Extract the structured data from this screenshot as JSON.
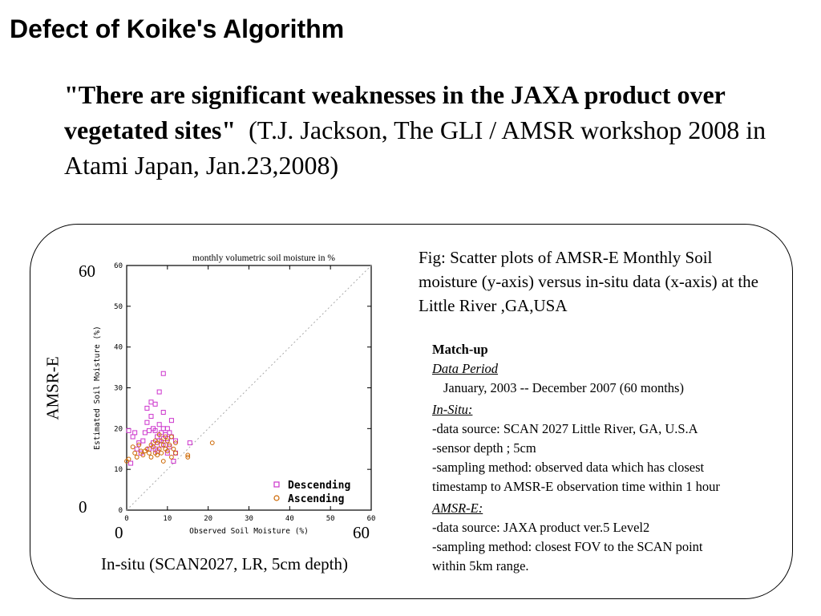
{
  "slide": {
    "title": "Defect of Koike's Algorithm",
    "quote_bold": "\"There are significant weaknesses in the JAXA product over vegetated sites\"",
    "quote_rest": "(T.J. Jackson, The GLI / AMSR workshop 2008 in Atami Japan, Jan.23,2008)"
  },
  "figure": {
    "outer_y_label": "AMSR-E",
    "outer_x_label": "In-situ (SCAN2027, LR, 5cm depth)",
    "outer_y_top": "60",
    "outer_y_bottom": "0",
    "outer_x_left": "0",
    "outer_x_right": "60",
    "annotation": "monthly volumetric soil moisture in %"
  },
  "caption": "Fig: Scatter plots of AMSR-E Monthly Soil moisture (y-axis) versus in-situ data (x-axis) at the Little River ,GA,USA",
  "info": {
    "heading": "Match-up",
    "period_label": "Data Period",
    "period_value": "January, 2003  -- December 2007 (60 months)",
    "insitu_label": "In-Situ:",
    "insitu_lines": [
      "-data source: SCAN 2027 Little River, GA, U.S.A",
      "-sensor depth ; 5cm",
      "-sampling method:  observed data which has closest",
      "timestamp to AMSR-E observation time within 1 hour"
    ],
    "amsr_label": "AMSR-E:",
    "amsr_lines": [
      "-data source: JAXA product ver.5 Level2",
      "-sampling method: closest FOV to the SCAN point",
      "within 5km range."
    ]
  },
  "chart_data": {
    "type": "scatter",
    "title": "",
    "xlabel": "Observed Soil Moisture (%)",
    "ylabel": "Estimated Soil Moisture (%)",
    "xlim": [
      0,
      60
    ],
    "ylim": [
      0,
      60
    ],
    "xticks": [
      0,
      10,
      20,
      30,
      40,
      50,
      60
    ],
    "yticks": [
      0,
      10,
      20,
      30,
      40,
      50,
      60
    ],
    "one_to_one_line": true,
    "legend_position": "bottom-right",
    "colors": {
      "Descending": "#cc33cc",
      "Ascending": "#cc6600",
      "reference_line": "#aaaaaa"
    },
    "series": [
      {
        "name": "Descending",
        "marker": "square",
        "points": [
          [
            0.5,
            19.5
          ],
          [
            1,
            11.5
          ],
          [
            1.5,
            18
          ],
          [
            2,
            19
          ],
          [
            2.5,
            15
          ],
          [
            3,
            16.5
          ],
          [
            3.5,
            14
          ],
          [
            4,
            17
          ],
          [
            4.5,
            19
          ],
          [
            5,
            21.5
          ],
          [
            5,
            25
          ],
          [
            5.5,
            19.5
          ],
          [
            5.5,
            15
          ],
          [
            6,
            26.5
          ],
          [
            6,
            23
          ],
          [
            6.5,
            16.5
          ],
          [
            6.5,
            20
          ],
          [
            7,
            26
          ],
          [
            7,
            19.5
          ],
          [
            7,
            15
          ],
          [
            7.5,
            18
          ],
          [
            7.5,
            14.5
          ],
          [
            8,
            21
          ],
          [
            8,
            17
          ],
          [
            8,
            29
          ],
          [
            8.5,
            19
          ],
          [
            8.5,
            16
          ],
          [
            9,
            33.5
          ],
          [
            9,
            24
          ],
          [
            9,
            20
          ],
          [
            9,
            17.5
          ],
          [
            9.5,
            18.5
          ],
          [
            9.5,
            16
          ],
          [
            10,
            20
          ],
          [
            10,
            17.5
          ],
          [
            10,
            14
          ],
          [
            10.5,
            19
          ],
          [
            10.5,
            15.5
          ],
          [
            11,
            22
          ],
          [
            11,
            18
          ],
          [
            11.5,
            12
          ],
          [
            12,
            17
          ],
          [
            12,
            14
          ],
          [
            15.5,
            16.5
          ]
        ]
      },
      {
        "name": "Ascending",
        "marker": "circle",
        "points": [
          [
            0,
            12
          ],
          [
            0.5,
            12.5
          ],
          [
            1.5,
            15.5
          ],
          [
            2,
            14
          ],
          [
            2.5,
            13
          ],
          [
            3,
            16
          ],
          [
            3.5,
            14.5
          ],
          [
            4,
            13.5
          ],
          [
            4.5,
            14.5
          ],
          [
            5,
            15
          ],
          [
            5.5,
            14
          ],
          [
            6,
            13
          ],
          [
            6,
            16
          ],
          [
            6.5,
            15.5
          ],
          [
            7,
            14
          ],
          [
            7,
            17
          ],
          [
            7.5,
            13.5
          ],
          [
            7.5,
            16.5
          ],
          [
            8,
            15
          ],
          [
            8,
            18.5
          ],
          [
            8.5,
            14
          ],
          [
            8.5,
            17
          ],
          [
            9,
            12
          ],
          [
            9,
            16
          ],
          [
            9.5,
            18
          ],
          [
            9.5,
            15
          ],
          [
            10,
            17
          ],
          [
            10,
            14.5
          ],
          [
            10.5,
            16
          ],
          [
            11,
            13
          ],
          [
            11,
            18
          ],
          [
            11.5,
            15
          ],
          [
            12,
            14
          ],
          [
            12,
            16.5
          ],
          [
            15,
            13
          ],
          [
            15,
            13.5
          ],
          [
            21,
            16.5
          ]
        ]
      }
    ]
  }
}
